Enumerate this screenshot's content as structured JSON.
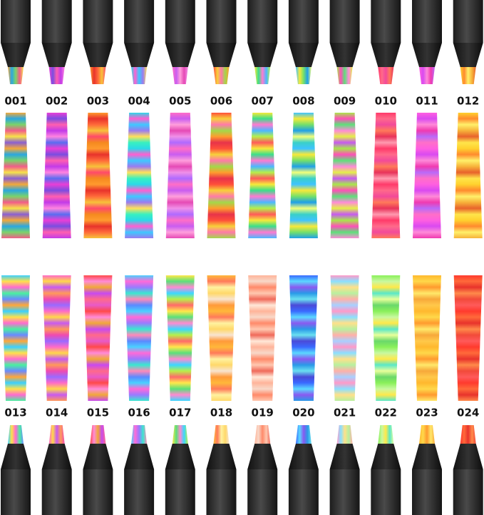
{
  "top": {
    "labels": [
      "001",
      "002",
      "003",
      "004",
      "005",
      "006",
      "007",
      "008",
      "009",
      "010",
      "011",
      "012"
    ]
  },
  "bottom": {
    "labels": [
      "013",
      "014",
      "015",
      "016",
      "017",
      "018",
      "019",
      "020",
      "021",
      "022",
      "023",
      "024"
    ]
  }
}
